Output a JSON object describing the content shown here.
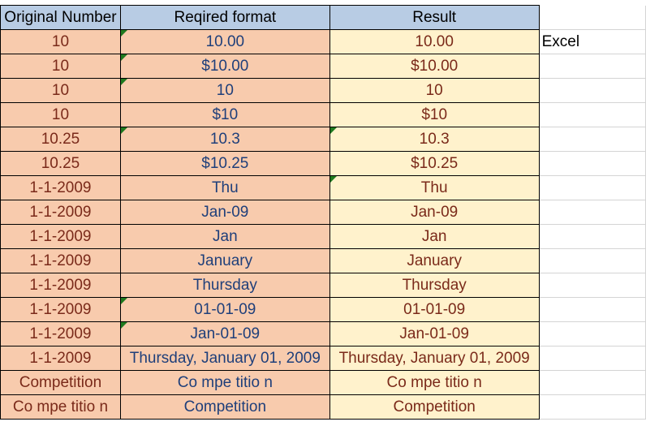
{
  "headers": [
    "Original Number",
    "Reqired format",
    "Result"
  ],
  "side_label": "Excel",
  "colors": {
    "header": "#b8cce4",
    "orig": "#f8cbad",
    "result": "#fff2cc",
    "error_marker": "#1f7a1f"
  },
  "rows": [
    {
      "original": "10",
      "format": "10.00",
      "result": "10.00",
      "format_marker": true,
      "result_marker": false
    },
    {
      "original": "10",
      "format": "$10.00",
      "result": "$10.00",
      "format_marker": true,
      "result_marker": false
    },
    {
      "original": "10",
      "format": "10",
      "result": "10",
      "format_marker": true,
      "result_marker": false
    },
    {
      "original": "10",
      "format": "$10",
      "result": "$10",
      "format_marker": false,
      "result_marker": false
    },
    {
      "original": "10.25",
      "format": "10.3",
      "result": "10.3",
      "format_marker": true,
      "result_marker": true
    },
    {
      "original": "10.25",
      "format": "$10.25",
      "result": "$10.25",
      "format_marker": false,
      "result_marker": false
    },
    {
      "original": "1-1-2009",
      "format": "Thu",
      "result": "Thu",
      "format_marker": false,
      "result_marker": true
    },
    {
      "original": "1-1-2009",
      "format": "Jan-09",
      "result": "Jan-09",
      "format_marker": false,
      "result_marker": false
    },
    {
      "original": "1-1-2009",
      "format": "Jan",
      "result": "Jan",
      "format_marker": false,
      "result_marker": false
    },
    {
      "original": "1-1-2009",
      "format": "January",
      "result": "January",
      "format_marker": false,
      "result_marker": false
    },
    {
      "original": "1-1-2009",
      "format": "Thursday",
      "result": "Thursday",
      "format_marker": false,
      "result_marker": false
    },
    {
      "original": "1-1-2009",
      "format": "01-01-09",
      "result": "01-01-09",
      "format_marker": true,
      "result_marker": false
    },
    {
      "original": "1-1-2009",
      "format": "Jan-01-09",
      "result": "Jan-01-09",
      "format_marker": true,
      "result_marker": false
    },
    {
      "original": "1-1-2009",
      "format": "Thursday, January 01, 2009",
      "result": "Thursday, January 01, 2009",
      "format_marker": false,
      "result_marker": false
    },
    {
      "original": "Competition",
      "format": "Co mpe titio n",
      "result": "Co mpe titio n",
      "format_marker": false,
      "result_marker": false
    },
    {
      "original": "Co mpe titio n",
      "format": "Competition",
      "result": "Competition",
      "format_marker": false,
      "result_marker": false
    }
  ]
}
